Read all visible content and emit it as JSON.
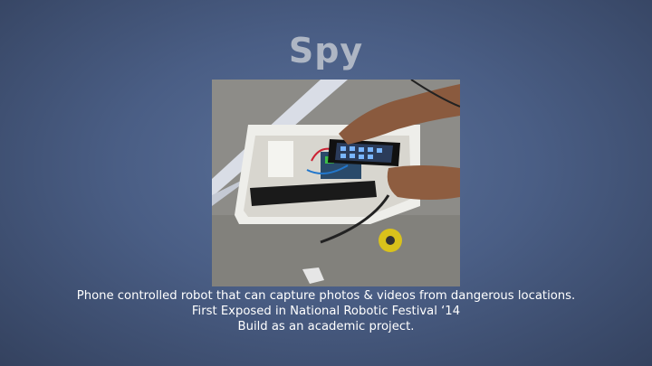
{
  "slide": {
    "title": "Spy",
    "caption_lines": [
      "Phone controlled robot that can capture photos & videos from dangerous locations.",
      "First Exposed in National Robotic Festival ‘14",
      "Build as an academic project."
    ]
  },
  "colors": {
    "background": "#4a5e85",
    "title": "#aeb6c4",
    "caption": "#ffffff"
  }
}
